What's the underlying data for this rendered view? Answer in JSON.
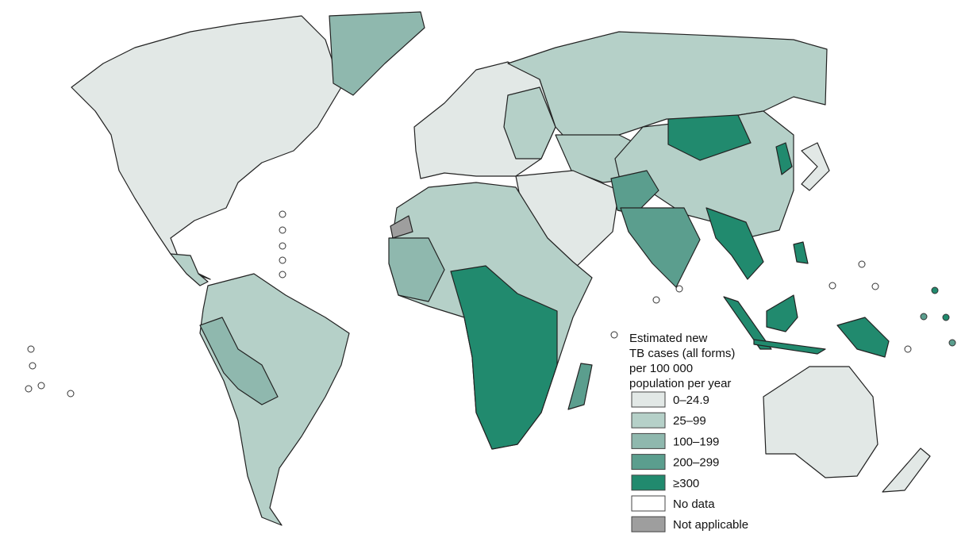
{
  "legend": {
    "title_lines": [
      "Estimated new",
      "TB cases (all forms)",
      "per 100 000",
      "population per year"
    ],
    "items": [
      {
        "label": "0–24.9",
        "color": "#e2e8e6"
      },
      {
        "label": "25–99",
        "color": "#b5d0c8"
      },
      {
        "label": "100–199",
        "color": "#8fb8ae"
      },
      {
        "label": "200–299",
        "color": "#5b9e8e"
      },
      {
        "label": "≥300",
        "color": "#218a6e"
      },
      {
        "label": "No data",
        "color": "#ffffff"
      },
      {
        "label": "Not applicable",
        "color": "#9e9e9e"
      }
    ]
  }
}
